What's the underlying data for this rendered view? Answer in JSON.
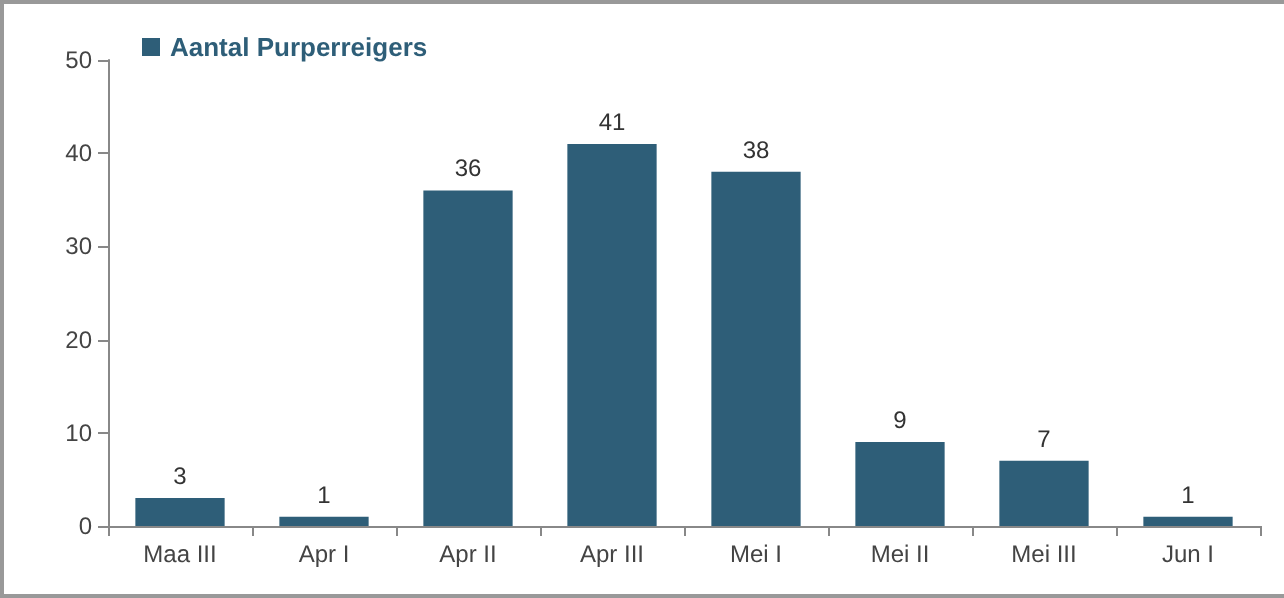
{
  "chart_data": {
    "type": "bar",
    "categories": [
      "Maa III",
      "Apr I",
      "Apr II",
      "Apr III",
      "Mei I",
      "Mei II",
      "Mei III",
      "Jun I"
    ],
    "series": [
      {
        "name": "Aantal Purperreigers",
        "color": "#2e5e78",
        "values": [
          3,
          1,
          36,
          41,
          38,
          9,
          7,
          1
        ]
      }
    ],
    "ylim": [
      0,
      50
    ],
    "yticks": [
      0,
      10,
      20,
      30,
      40,
      50
    ],
    "grid": false,
    "legend": "top left",
    "data_labels": true
  }
}
